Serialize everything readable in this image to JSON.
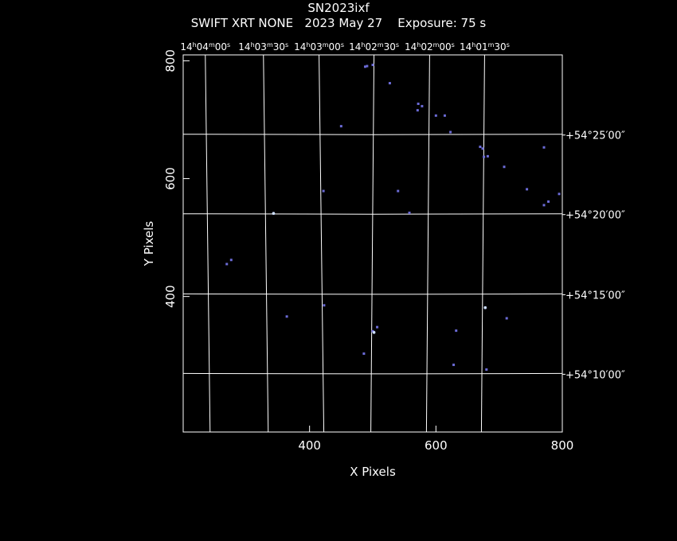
{
  "header": {
    "object_name": "SN2023ixf",
    "subtitle": "SWIFT XRT NONE   2023 May 27    Exposure: 75 s"
  },
  "colors": {
    "background": "#000000",
    "axes": "#ffffff",
    "grid": "#ffffff",
    "sources": "#6b6bd6"
  },
  "chart_data": {
    "type": "scatter",
    "title": "SN2023ixf",
    "subtitle": "SWIFT XRT NONE   2023 May 27    Exposure: 75 s",
    "xlabel": "X Pixels",
    "ylabel": "Y Pixels",
    "xlim": [
      200,
      800
    ],
    "ylim": [
      170,
      810
    ],
    "x_ticks": [
      400,
      600,
      800
    ],
    "x_tick_labels": [
      "400",
      "600",
      "800"
    ],
    "y_ticks": [
      400,
      600,
      800
    ],
    "y_tick_labels": [
      "400",
      "600",
      "800"
    ],
    "grid": true,
    "ra_labels": [
      {
        "x": 235,
        "h": "14",
        "m": "04",
        "s": "00"
      },
      {
        "x": 327,
        "h": "14",
        "m": "03",
        "s": "30"
      },
      {
        "x": 415,
        "h": "14",
        "m": "03",
        "s": "00"
      },
      {
        "x": 502,
        "h": "14",
        "m": "02",
        "s": "30"
      },
      {
        "x": 590,
        "h": "14",
        "m": "02",
        "s": "00"
      },
      {
        "x": 677,
        "h": "14",
        "m": "01",
        "s": "30"
      }
    ],
    "dec_labels": [
      {
        "y": 674,
        "text": "+54°25′00″"
      },
      {
        "y": 539,
        "text": "+54°20′00″"
      },
      {
        "y": 403,
        "text": "+54°15′00″"
      },
      {
        "y": 268,
        "text": "+54°10′00″"
      }
    ],
    "sources": [
      [
        488,
        790
      ],
      [
        491,
        791
      ],
      [
        500,
        793
      ],
      [
        527,
        762
      ],
      [
        572,
        727
      ],
      [
        578,
        723
      ],
      [
        571,
        716
      ],
      [
        600,
        707
      ],
      [
        614,
        707
      ],
      [
        450,
        689
      ],
      [
        623,
        679
      ],
      [
        670,
        654
      ],
      [
        674,
        651
      ],
      [
        676,
        637
      ],
      [
        682,
        638
      ],
      [
        708,
        620
      ],
      [
        771,
        653
      ],
      [
        744,
        582
      ],
      [
        795,
        574
      ],
      [
        771,
        555
      ],
      [
        778,
        561
      ],
      [
        422,
        579
      ],
      [
        540,
        579
      ],
      [
        558,
        542
      ],
      [
        343,
        541
      ],
      [
        269,
        455
      ],
      [
        276,
        462
      ],
      [
        423,
        385
      ],
      [
        364,
        366
      ],
      [
        678,
        381
      ],
      [
        712,
        363
      ],
      [
        507,
        348
      ],
      [
        632,
        342
      ],
      [
        502,
        339
      ],
      [
        500,
        341
      ],
      [
        486,
        303
      ],
      [
        628,
        284
      ],
      [
        680,
        276
      ]
    ],
    "bright_sources": [
      [
        343,
        541
      ],
      [
        678,
        381
      ],
      [
        502,
        339
      ]
    ]
  }
}
